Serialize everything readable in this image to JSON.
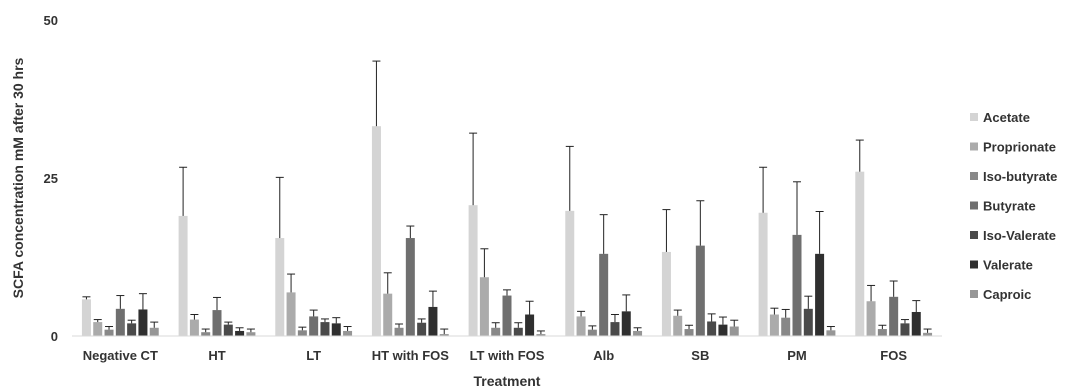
{
  "chart_data": {
    "type": "bar",
    "title": "",
    "xlabel": "Treatment",
    "ylabel": "SCFA concentration mM after 30 hrs",
    "ylim": [
      0,
      50
    ],
    "yticks": [
      "0",
      "25",
      "50"
    ],
    "grid": false,
    "legend_position": "right",
    "categories": [
      "Negative CT",
      "HT",
      "LT",
      "HT with FOS",
      "LT with FOS",
      "Alb",
      "SB",
      "PM",
      "FOS"
    ],
    "series": [
      {
        "name": "Acetate",
        "color": "#d4d4d4",
        "values": [
          5.8,
          19.0,
          15.5,
          33.2,
          20.7,
          19.8,
          13.3,
          19.5,
          26.0
        ],
        "errors": [
          0.4,
          7.7,
          9.6,
          10.3,
          11.4,
          10.2,
          6.7,
          7.2,
          5.0
        ]
      },
      {
        "name": "Proprionate",
        "color": "#ababab",
        "values": [
          2.2,
          2.6,
          6.9,
          6.7,
          9.3,
          3.1,
          3.2,
          3.4,
          5.5
        ],
        "errors": [
          0.4,
          0.8,
          2.9,
          3.3,
          4.5,
          0.8,
          0.9,
          1.0,
          2.5
        ]
      },
      {
        "name": "Iso-butyrate",
        "color": "#888888",
        "values": [
          1.0,
          0.6,
          0.9,
          1.3,
          1.3,
          1.0,
          1.1,
          2.9,
          1.1
        ],
        "errors": [
          0.5,
          0.5,
          0.5,
          0.6,
          0.8,
          0.6,
          0.6,
          1.3,
          0.6
        ]
      },
      {
        "name": "Butyrate",
        "color": "#6f6f6f",
        "values": [
          4.3,
          4.1,
          3.1,
          15.5,
          6.4,
          13.0,
          14.3,
          16.0,
          6.2
        ],
        "errors": [
          2.1,
          2.0,
          1.0,
          1.9,
          0.9,
          6.2,
          7.1,
          8.4,
          2.5
        ]
      },
      {
        "name": "Iso-Valerate",
        "color": "#4a4a4a",
        "values": [
          2.0,
          1.8,
          2.2,
          2.1,
          1.3,
          2.2,
          2.3,
          4.3,
          2.0
        ],
        "errors": [
          0.5,
          0.4,
          0.5,
          0.6,
          0.8,
          1.2,
          1.2,
          2.0,
          0.6
        ]
      },
      {
        "name": "Valerate",
        "color": "#2f2f2f",
        "values": [
          4.2,
          0.8,
          2.0,
          4.6,
          3.4,
          3.9,
          1.8,
          13.0,
          3.8
        ],
        "errors": [
          2.5,
          0.5,
          0.9,
          2.5,
          2.1,
          2.6,
          1.2,
          6.7,
          1.8
        ]
      },
      {
        "name": "Caproic",
        "color": "#969696",
        "values": [
          1.3,
          0.6,
          0.8,
          0.3,
          0.3,
          0.8,
          1.5,
          0.9,
          0.5
        ],
        "errors": [
          0.9,
          0.5,
          0.7,
          0.8,
          0.5,
          0.5,
          1.0,
          0.6,
          0.6
        ]
      }
    ]
  }
}
